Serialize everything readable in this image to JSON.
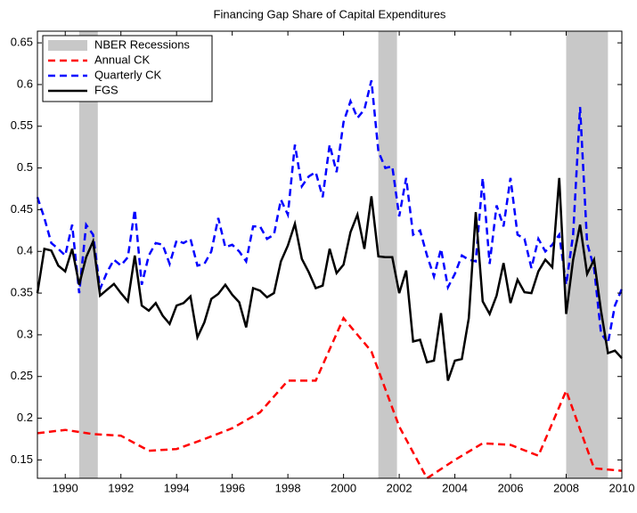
{
  "chart_data": {
    "type": "line",
    "title": "Financing Gap Share of Capital Expenditures",
    "xlim": [
      1989,
      2010
    ],
    "ylim": [
      0.128,
      0.664
    ],
    "xticks": [
      1990,
      1992,
      1994,
      1996,
      1998,
      2000,
      2002,
      2004,
      2006,
      2008,
      2010
    ],
    "yticks": [
      0.15,
      0.2,
      0.25,
      0.3,
      0.35,
      0.4,
      0.45,
      0.5,
      0.55,
      0.6,
      0.65
    ],
    "legend": "upper left",
    "recessions": {
      "name": "NBER Recessions",
      "color": "#c8c8c8",
      "spans": [
        [
          1990.5,
          1991.17
        ],
        [
          2001.25,
          2001.92
        ],
        [
          2008,
          2009.5
        ]
      ]
    },
    "series": [
      {
        "name": "Annual CK",
        "color": "#ff0000",
        "dash": true,
        "x": [
          1989,
          1990,
          1991,
          1992,
          1993,
          1994,
          1995,
          1996,
          1997,
          1998,
          1999,
          2000,
          2001,
          2002,
          2003,
          2004,
          2005,
          2006,
          2007,
          2008,
          2009,
          2010
        ],
        "values": [
          0.182,
          0.186,
          0.181,
          0.179,
          0.161,
          0.163,
          0.175,
          0.188,
          0.207,
          0.245,
          0.245,
          0.32,
          0.28,
          0.19,
          0.128,
          0.15,
          0.17,
          0.168,
          0.155,
          0.233,
          0.14,
          0.137
        ]
      },
      {
        "name": "Quarterly CK",
        "color": "#0000ff",
        "dash": true,
        "x": [
          1989,
          1989.25,
          1989.5,
          1989.75,
          1990,
          1990.25,
          1990.5,
          1990.75,
          1991,
          1991.25,
          1991.5,
          1991.75,
          1992,
          1992.25,
          1992.5,
          1992.75,
          1993,
          1993.25,
          1993.5,
          1993.75,
          1994,
          1994.25,
          1994.5,
          1994.75,
          1995,
          1995.25,
          1995.5,
          1995.75,
          1996,
          1996.25,
          1996.5,
          1996.75,
          1997,
          1997.25,
          1997.5,
          1997.75,
          1998,
          1998.25,
          1998.5,
          1998.75,
          1999,
          1999.25,
          1999.5,
          1999.75,
          2000,
          2000.25,
          2000.5,
          2000.75,
          2001,
          2001.25,
          2001.5,
          2001.75,
          2002,
          2002.25,
          2002.5,
          2002.75,
          2003,
          2003.25,
          2003.5,
          2003.75,
          2004,
          2004.25,
          2004.5,
          2004.75,
          2005,
          2005.25,
          2005.5,
          2005.75,
          2006,
          2006.25,
          2006.5,
          2006.75,
          2007,
          2007.25,
          2007.5,
          2007.75,
          2008,
          2008.25,
          2008.5,
          2008.75,
          2009,
          2009.25,
          2009.5,
          2009.75,
          2010
        ],
        "values": [
          0.465,
          0.44,
          0.41,
          0.403,
          0.395,
          0.432,
          0.35,
          0.432,
          0.42,
          0.355,
          0.375,
          0.39,
          0.383,
          0.393,
          0.45,
          0.36,
          0.395,
          0.41,
          0.408,
          0.385,
          0.413,
          0.41,
          0.415,
          0.383,
          0.385,
          0.4,
          0.44,
          0.405,
          0.408,
          0.4,
          0.388,
          0.43,
          0.43,
          0.415,
          0.42,
          0.462,
          0.444,
          0.528,
          0.478,
          0.49,
          0.495,
          0.465,
          0.528,
          0.495,
          0.555,
          0.58,
          0.56,
          0.57,
          0.605,
          0.52,
          0.5,
          0.502,
          0.442,
          0.488,
          0.42,
          0.425,
          0.395,
          0.37,
          0.403,
          0.357,
          0.373,
          0.395,
          0.39,
          0.388,
          0.488,
          0.385,
          0.455,
          0.43,
          0.488,
          0.42,
          0.415,
          0.38,
          0.415,
          0.4,
          0.408,
          0.42,
          0.36,
          0.42,
          0.573,
          0.41,
          0.38,
          0.302,
          0.29,
          0.335,
          0.355
        ]
      },
      {
        "name": "FGS",
        "color": "#000000",
        "dash": false,
        "x": [
          1989,
          1989.25,
          1989.5,
          1989.75,
          1990,
          1990.25,
          1990.5,
          1990.75,
          1991,
          1991.25,
          1991.5,
          1991.75,
          1992,
          1992.25,
          1992.5,
          1992.75,
          1993,
          1993.25,
          1993.5,
          1993.75,
          1994,
          1994.25,
          1994.5,
          1994.75,
          1995,
          1995.25,
          1995.5,
          1995.75,
          1996,
          1996.25,
          1996.5,
          1996.75,
          1997,
          1997.25,
          1997.5,
          1997.75,
          1998,
          1998.25,
          1998.5,
          1998.75,
          1999,
          1999.25,
          1999.5,
          1999.75,
          2000,
          2000.25,
          2000.5,
          2000.75,
          2001,
          2001.25,
          2001.5,
          2001.75,
          2002,
          2002.25,
          2002.5,
          2002.75,
          2003,
          2003.25,
          2003.5,
          2003.75,
          2004,
          2004.25,
          2004.5,
          2004.75,
          2005,
          2005.25,
          2005.5,
          2005.75,
          2006,
          2006.25,
          2006.5,
          2006.75,
          2007,
          2007.25,
          2007.5,
          2007.75,
          2008,
          2008.25,
          2008.5,
          2008.75,
          2009,
          2009.25,
          2009.5,
          2009.75,
          2010
        ],
        "values": [
          0.35,
          0.403,
          0.401,
          0.383,
          0.376,
          0.403,
          0.36,
          0.393,
          0.412,
          0.347,
          0.354,
          0.361,
          0.35,
          0.34,
          0.395,
          0.335,
          0.329,
          0.338,
          0.323,
          0.313,
          0.335,
          0.338,
          0.346,
          0.297,
          0.315,
          0.343,
          0.349,
          0.36,
          0.348,
          0.339,
          0.309,
          0.356,
          0.353,
          0.345,
          0.35,
          0.388,
          0.407,
          0.433,
          0.391,
          0.375,
          0.356,
          0.359,
          0.403,
          0.374,
          0.384,
          0.423,
          0.444,
          0.403,
          0.466,
          0.394,
          0.393,
          0.393,
          0.35,
          0.377,
          0.292,
          0.294,
          0.267,
          0.269,
          0.326,
          0.245,
          0.269,
          0.271,
          0.32,
          0.447,
          0.34,
          0.325,
          0.347,
          0.386,
          0.338,
          0.366,
          0.351,
          0.35,
          0.376,
          0.39,
          0.381,
          0.488,
          0.325,
          0.39,
          0.432,
          0.373,
          0.39,
          0.329,
          0.278,
          0.281,
          0.272
        ]
      }
    ]
  }
}
